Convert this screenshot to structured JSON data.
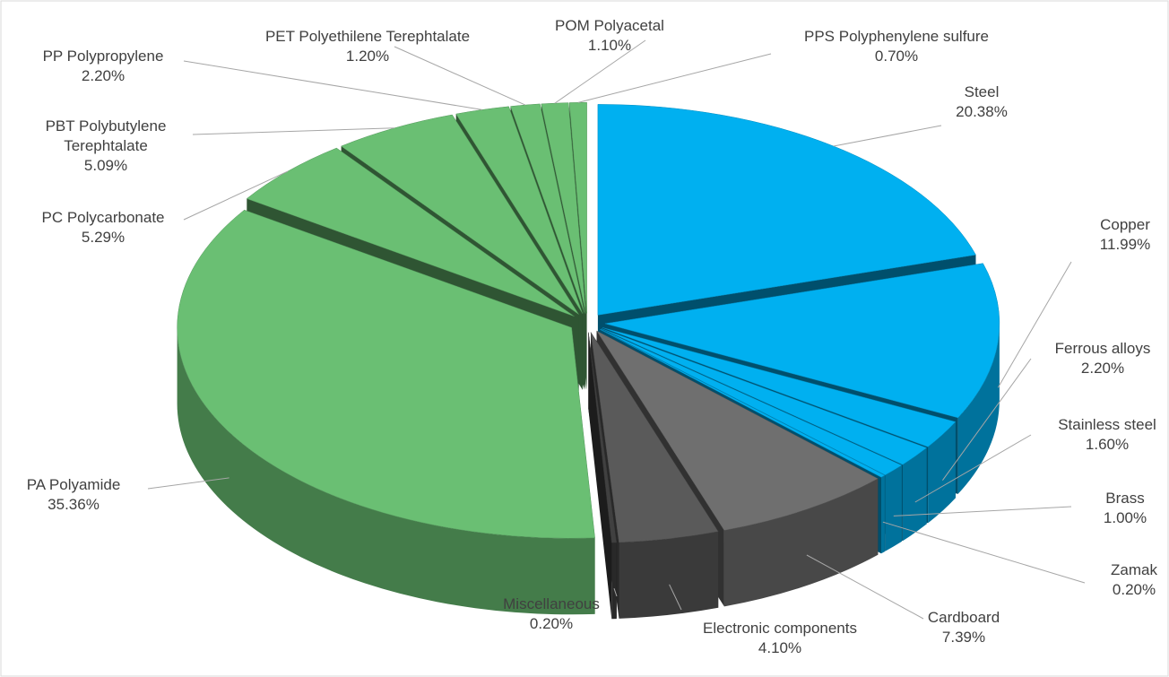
{
  "chart_data": {
    "type": "pie3d",
    "categories": [
      "Steel",
      "Copper",
      "Ferrous alloys",
      "Stainless steel",
      "Brass",
      "Zamak",
      "Cardboard",
      "Electronic components",
      "Miscellaneous",
      "PA Polyamide",
      "PC Polycarbonate",
      "PBT Polybutylene Terephtalate",
      "PP Polypropylene",
      "PET Polyethilene Terephtalate",
      "POM Polyacetal",
      "PPS Polyphenylene sulfure"
    ],
    "values": [
      20.38,
      11.99,
      2.2,
      1.6,
      1.0,
      0.2,
      7.39,
      4.1,
      0.2,
      35.36,
      5.29,
      5.09,
      2.2,
      1.2,
      1.1,
      0.7
    ],
    "value_labels": [
      "20.38%",
      "11.99%",
      "2.20%",
      "1.60%",
      "1.00%",
      "0.20%",
      "7.39%",
      "4.10%",
      "0.20%",
      "35.36%",
      "5.29%",
      "5.09%",
      "2.20%",
      "1.20%",
      "1.10%",
      "0.70%"
    ],
    "colors": [
      "#00b0f0",
      "#00b0f0",
      "#00b0f0",
      "#00b0f0",
      "#00b0f0",
      "#00b0f0",
      "#6f6f6f",
      "#5a5a5a",
      "#404040",
      "#6abf73",
      "#6abf73",
      "#6abf73",
      "#6abf73",
      "#6abf73",
      "#6abf73",
      "#6abf73"
    ]
  }
}
